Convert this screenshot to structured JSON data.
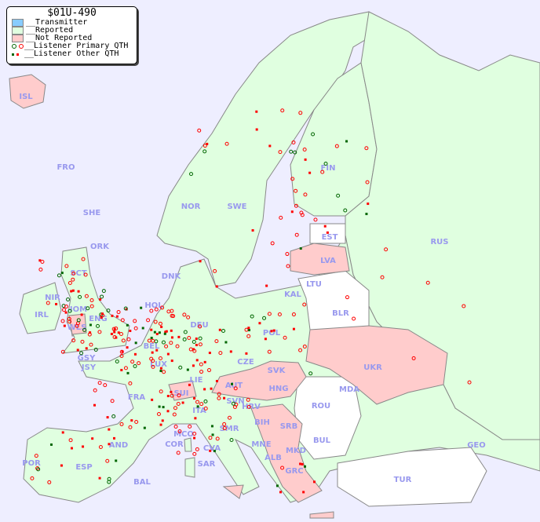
{
  "title": "$01U-490",
  "legend": {
    "transmitter": "__Transmitter",
    "reported": "__Reported",
    "not_reported": "__Not Reported",
    "primary": "__Listener Primary QTH",
    "other": "__Listener Other QTH"
  },
  "colors": {
    "sea": "#eeeeff",
    "transmitter": "#88ccff",
    "reported": "#e0ffe0",
    "not_reported": "#ffcccc",
    "primary": "#ff0000",
    "primary_alt": "#006600",
    "other": "#ff0000"
  },
  "countries": [
    "ISL",
    "FRO",
    "SHE",
    "ORK",
    "NOR",
    "SWE",
    "FIN",
    "EST",
    "LVA",
    "LTU",
    "RUS",
    "DNK",
    "SCT",
    "NIR",
    "IRL",
    "IOM",
    "WLS",
    "ENG",
    "HOL",
    "BEL",
    "LUX",
    "DEU",
    "POL",
    "KAL",
    "BLR",
    "UKR",
    "CZE",
    "SVK",
    "AUT",
    "HNG",
    "LIE",
    "SUI",
    "GSY",
    "JSY",
    "FRA",
    "SVN",
    "HRV",
    "ROU",
    "MDA",
    "BIH",
    "SRB",
    "BUL",
    "MNE",
    "MKD",
    "ALB",
    "GRC",
    "TUR",
    "GEO",
    "ITA",
    "SMR",
    "MCO",
    "COR",
    "CVA",
    "SAR",
    "AND",
    "POR",
    "ESP",
    "BAL"
  ]
}
